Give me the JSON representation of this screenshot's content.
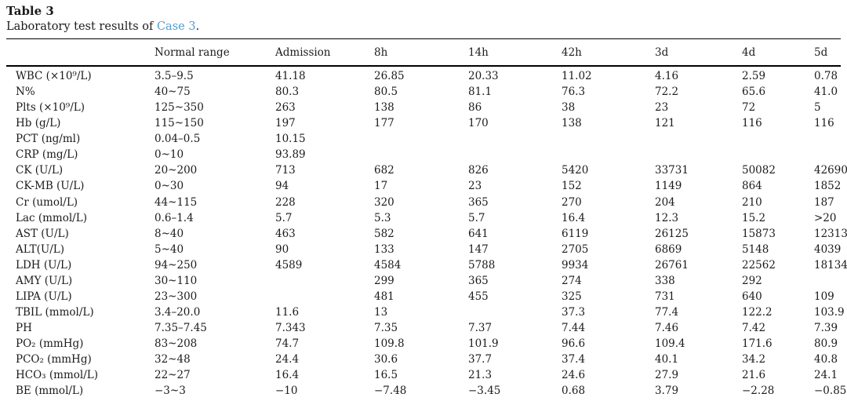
{
  "table_meta": {
    "title": "Table 3",
    "caption_prefix": "Laboratory test results of ",
    "caption_link": "Case 3",
    "caption_suffix": "."
  },
  "colors": {
    "link_blue": "#4d9fd3",
    "text": "#1b1b1b",
    "rule": "#000000"
  },
  "chart_data": {
    "type": "table",
    "columns": [
      "",
      "Normal range",
      "Admission",
      "8h",
      "14h",
      "42h",
      "3d",
      "4d",
      "5d"
    ],
    "rows": [
      [
        "WBC (×10⁹/L)",
        "3.5–9.5",
        "41.18",
        "26.85",
        "20.33",
        "11.02",
        "4.16",
        "2.59",
        "0.78"
      ],
      [
        "N%",
        "40~75",
        "80.3",
        "80.5",
        "81.1",
        "76.3",
        "72.2",
        "65.6",
        "41.0"
      ],
      [
        "Plts (×10⁹/L)",
        "125~350",
        "263",
        "138",
        "86",
        "38",
        "23",
        "72",
        "5"
      ],
      [
        "Hb (g/L)",
        "115~150",
        "197",
        "177",
        "170",
        "138",
        "121",
        "116",
        "116"
      ],
      [
        "PCT (ng/ml)",
        "0.04–0.5",
        "10.15",
        "",
        "",
        "",
        "",
        "",
        ""
      ],
      [
        "CRP (mg/L)",
        "0~10",
        "93.89",
        "",
        "",
        "",
        "",
        "",
        ""
      ],
      [
        "CK (U/L)",
        "20~200",
        "713",
        "682",
        "826",
        "5420",
        "33731",
        "50082",
        "42690"
      ],
      [
        "CK-MB (U/L)",
        "0~30",
        "94",
        "17",
        "23",
        "152",
        "1149",
        "864",
        "1852"
      ],
      [
        "Cr (umol/L)",
        "44~115",
        "228",
        "320",
        "365",
        "270",
        "204",
        "210",
        "187"
      ],
      [
        "Lac (mmol/L)",
        "0.6–1.4",
        "5.7",
        "5.3",
        "5.7",
        "16.4",
        "12.3",
        "15.2",
        ">20"
      ],
      [
        "AST (U/L)",
        "8~40",
        "463",
        "582",
        "641",
        "6119",
        "26125",
        "15873",
        "12313"
      ],
      [
        "ALT(U/L)",
        "5~40",
        "90",
        "133",
        "147",
        "2705",
        "6869",
        "5148",
        "4039"
      ],
      [
        "LDH (U/L)",
        "94~250",
        "4589",
        "4584",
        "5788",
        "9934",
        "26761",
        "22562",
        "18134"
      ],
      [
        "AMY (U/L)",
        "30~110",
        "",
        "299",
        "365",
        "274",
        "338",
        "292",
        ""
      ],
      [
        "LIPA (U/L)",
        "23~300",
        "",
        "481",
        "455",
        "325",
        "731",
        "640",
        "109"
      ],
      [
        "TBIL (mmol/L)",
        "3.4–20.0",
        "11.6",
        "13",
        "",
        "37.3",
        "77.4",
        "122.2",
        "103.9"
      ],
      [
        "PH",
        "7.35–7.45",
        "7.343",
        "7.35",
        "7.37",
        "7.44",
        "7.46",
        "7.42",
        "7.39"
      ],
      [
        "PO₂ (mmHg)",
        "83~208",
        "74.7",
        "109.8",
        "101.9",
        "96.6",
        "109.4",
        "171.6",
        "80.9"
      ],
      [
        "PCO₂ (mmHg)",
        "32~48",
        "24.4",
        "30.6",
        "37.7",
        "37.4",
        "40.1",
        "34.2",
        "40.8"
      ],
      [
        "HCO₃ (mmol/L)",
        "22~27",
        "16.4",
        "16.5",
        "21.3",
        "24.6",
        "27.9",
        "21.6",
        "24.1"
      ],
      [
        "BE (mmol/L)",
        "−3~3",
        "−10",
        "−7.48",
        "−3.45",
        "0.68",
        "3.79",
        "−2.28",
        "−0.85"
      ]
    ]
  }
}
